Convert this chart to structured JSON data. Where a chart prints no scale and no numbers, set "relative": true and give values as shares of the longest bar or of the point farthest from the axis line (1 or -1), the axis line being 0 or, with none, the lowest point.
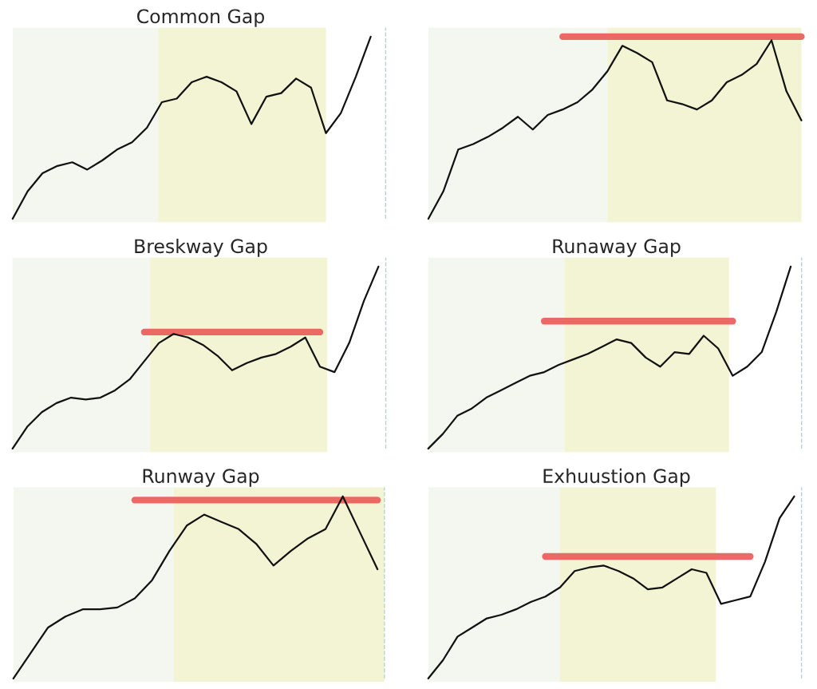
{
  "chart_data": [
    {
      "type": "line",
      "title": "Common Gap",
      "relative": true,
      "line_style": "solid",
      "marker": "none",
      "categories": [
        null,
        null,
        null,
        null,
        null,
        null,
        null,
        null,
        null,
        null,
        null,
        null,
        null,
        null,
        null,
        null,
        null,
        null,
        null,
        null,
        null,
        null,
        null,
        null,
        null
      ],
      "series": [
        {
          "color": "#111111",
          "values": [
            0,
            0.15,
            0.25,
            0.29,
            0.31,
            0.27,
            0.32,
            0.38,
            0.42,
            0.5,
            0.64,
            0.66,
            0.75,
            0.78,
            0.75,
            0.7,
            0.52,
            0.67,
            0.69,
            0.77,
            0.72,
            0.47,
            0.58,
            0.78,
            1
          ]
        }
      ]
    },
    {
      "type": "line",
      "relative": true,
      "line_style": "solid",
      "marker": "none",
      "categories": [
        null,
        null,
        null,
        null,
        null,
        null,
        null,
        null,
        null,
        null,
        null,
        null,
        null,
        null,
        null,
        null,
        null,
        null,
        null,
        null,
        null,
        null,
        null,
        null,
        null,
        null
      ],
      "series": [
        {
          "color": "#111111",
          "values": [
            0,
            0.15,
            0.38,
            0.41,
            0.45,
            0.5,
            0.56,
            0.49,
            0.57,
            0.6,
            0.64,
            0.71,
            0.81,
            0.95,
            0.91,
            0.86,
            0.65,
            0.63,
            0.6,
            0.65,
            0.75,
            0.79,
            0.85,
            0.98,
            0.7,
            0.54
          ]
        },
        {
          "color": "#e8504f",
          "values": [
            null,
            null,
            null,
            null,
            null,
            null,
            null,
            null,
            null,
            1,
            1,
            1,
            1,
            1,
            1,
            1,
            1,
            1,
            1,
            1,
            1,
            1,
            1,
            1,
            1,
            1
          ]
        }
      ]
    },
    {
      "type": "line",
      "title": "Breskway Gap",
      "relative": true,
      "line_style": "solid",
      "marker": "none",
      "categories": [
        null,
        null,
        null,
        null,
        null,
        null,
        null,
        null,
        null,
        null,
        null,
        null,
        null,
        null,
        null,
        null,
        null,
        null,
        null,
        null,
        null,
        null,
        null,
        null,
        null,
        null
      ],
      "series": [
        {
          "color": "#111111",
          "values": [
            0,
            0.12,
            0.2,
            0.25,
            0.28,
            0.27,
            0.28,
            0.32,
            0.38,
            0.48,
            0.58,
            0.63,
            0.61,
            0.57,
            0.51,
            0.43,
            0.47,
            0.5,
            0.52,
            0.56,
            0.61,
            0.45,
            0.42,
            0.58,
            0.81,
            1
          ]
        },
        {
          "color": "#e8504f",
          "values": [
            null,
            null,
            null,
            null,
            null,
            null,
            null,
            null,
            null,
            0.64,
            0.64,
            0.64,
            0.64,
            0.64,
            0.64,
            0.64,
            0.64,
            0.64,
            0.64,
            0.64,
            0.64,
            0.64,
            null,
            null,
            null,
            null
          ]
        }
      ]
    },
    {
      "type": "line",
      "title": "Runaway Gap",
      "relative": true,
      "line_style": "solid",
      "marker": "none",
      "categories": [
        null,
        null,
        null,
        null,
        null,
        null,
        null,
        null,
        null,
        null,
        null,
        null,
        null,
        null,
        null,
        null,
        null,
        null,
        null,
        null,
        null,
        null,
        null,
        null,
        null,
        null
      ],
      "series": [
        {
          "color": "#111111",
          "values": [
            0,
            0.08,
            0.18,
            0.22,
            0.28,
            0.32,
            0.36,
            0.4,
            0.42,
            0.46,
            0.49,
            0.52,
            0.56,
            0.6,
            0.58,
            0.5,
            0.45,
            0.53,
            0.52,
            0.62,
            0.55,
            0.4,
            0.45,
            0.53,
            0.75,
            1
          ]
        },
        {
          "color": "#e8504f",
          "values": [
            null,
            null,
            null,
            null,
            null,
            null,
            null,
            null,
            0.7,
            0.7,
            0.7,
            0.7,
            0.7,
            0.7,
            0.7,
            0.7,
            0.7,
            0.7,
            0.7,
            0.7,
            0.7,
            0.7,
            null,
            null,
            null,
            null
          ]
        }
      ]
    },
    {
      "type": "line",
      "title": "Runway Gap",
      "relative": true,
      "line_style": "solid",
      "marker": "none",
      "categories": [
        null,
        null,
        null,
        null,
        null,
        null,
        null,
        null,
        null,
        null,
        null,
        null,
        null,
        null,
        null,
        null,
        null,
        null,
        null,
        null,
        null,
        null
      ],
      "series": [
        {
          "color": "#111111",
          "values": [
            0,
            0.14,
            0.28,
            0.34,
            0.38,
            0.38,
            0.39,
            0.44,
            0.54,
            0.7,
            0.84,
            0.9,
            0.86,
            0.82,
            0.74,
            0.62,
            0.7,
            0.77,
            0.82,
            1,
            0.8,
            0.6
          ]
        },
        {
          "color": "#e8504f",
          "values": [
            null,
            null,
            null,
            null,
            null,
            null,
            null,
            0.98,
            0.98,
            0.98,
            0.98,
            0.98,
            0.98,
            0.98,
            0.98,
            0.98,
            0.98,
            0.98,
            0.98,
            0.98,
            0.98,
            0.98
          ]
        }
      ]
    },
    {
      "type": "line",
      "title": "Exhuustion Gap",
      "relative": true,
      "line_style": "solid",
      "marker": "none",
      "categories": [
        null,
        null,
        null,
        null,
        null,
        null,
        null,
        null,
        null,
        null,
        null,
        null,
        null,
        null,
        null,
        null,
        null,
        null,
        null,
        null,
        null,
        null,
        null,
        null,
        null,
        null
      ],
      "series": [
        {
          "color": "#111111",
          "values": [
            0,
            0.1,
            0.23,
            0.28,
            0.33,
            0.35,
            0.38,
            0.42,
            0.45,
            0.5,
            0.59,
            0.61,
            0.62,
            0.59,
            0.55,
            0.49,
            0.5,
            0.55,
            0.6,
            0.58,
            0.41,
            0.43,
            0.45,
            0.64,
            0.88,
            1
          ]
        },
        {
          "color": "#e8504f",
          "values": [
            null,
            null,
            null,
            null,
            null,
            null,
            null,
            null,
            0.67,
            0.67,
            0.67,
            0.67,
            0.67,
            0.67,
            0.67,
            0.67,
            0.67,
            0.67,
            0.67,
            0.67,
            0.67,
            0.67,
            0.67,
            null,
            null,
            null
          ]
        }
      ]
    }
  ]
}
